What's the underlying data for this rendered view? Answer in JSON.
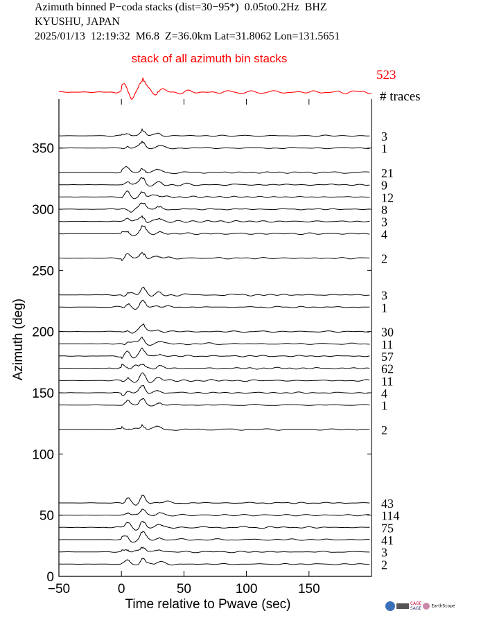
{
  "header": {
    "line1": "Azimuth binned P−coda stacks (dist=30−95*)  0.05to0.2Hz  BHZ",
    "line2": "KYUSHU, JAPAN",
    "line3": "2025/01/13  12:19:32  M6.8  Z=36.0km Lat=31.8062 Lon=131.5651"
  },
  "chart_data": {
    "type": "line",
    "title": "",
    "xlabel": "Time relative to Pwave (sec)",
    "ylabel": "Azimuth (deg)",
    "xlim": [
      -50,
      200
    ],
    "ylim": [
      0,
      390
    ],
    "xticks": [
      -50,
      0,
      50,
      100,
      150
    ],
    "yticks": [
      0,
      50,
      100,
      150,
      200,
      250,
      300,
      350
    ],
    "grid": false,
    "stack": {
      "label": "stack of all azimuth bin stacks",
      "count": "523",
      "color": "#ff0000"
    },
    "count_header": "# traces",
    "traces": [
      {
        "azimuth": 360,
        "count": "3"
      },
      {
        "azimuth": 350,
        "count": "1"
      },
      {
        "azimuth": 330,
        "count": "21"
      },
      {
        "azimuth": 320,
        "count": "9"
      },
      {
        "azimuth": 310,
        "count": "12"
      },
      {
        "azimuth": 300,
        "count": "8"
      },
      {
        "azimuth": 290,
        "count": "3"
      },
      {
        "azimuth": 280,
        "count": "4"
      },
      {
        "azimuth": 260,
        "count": "2"
      },
      {
        "azimuth": 230,
        "count": "3"
      },
      {
        "azimuth": 220,
        "count": "1"
      },
      {
        "azimuth": 200,
        "count": "30"
      },
      {
        "azimuth": 190,
        "count": "11"
      },
      {
        "azimuth": 180,
        "count": "57"
      },
      {
        "azimuth": 170,
        "count": "62"
      },
      {
        "azimuth": 160,
        "count": "11"
      },
      {
        "azimuth": 150,
        "count": "4"
      },
      {
        "azimuth": 140,
        "count": "1"
      },
      {
        "azimuth": 120,
        "count": "2"
      },
      {
        "azimuth": 60,
        "count": "43"
      },
      {
        "azimuth": 50,
        "count": "114"
      },
      {
        "azimuth": 40,
        "count": "75"
      },
      {
        "azimuth": 30,
        "count": "41"
      },
      {
        "azimuth": 20,
        "count": "3"
      },
      {
        "azimuth": 10,
        "count": "2"
      }
    ]
  },
  "logos": {
    "text1": "CAGE",
    "text2": "SAGE",
    "text3": "EarthScope"
  }
}
